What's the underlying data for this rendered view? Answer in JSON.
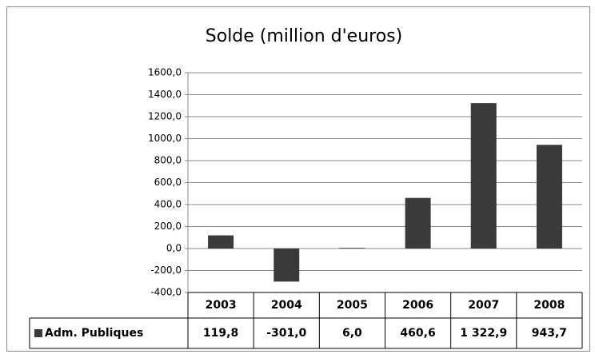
{
  "chart_data": {
    "type": "bar",
    "title": "Solde (million d'euros)",
    "categories": [
      "2003",
      "2004",
      "2005",
      "2006",
      "2007",
      "2008"
    ],
    "series": [
      {
        "name": "Adm. Publiques",
        "color": "#3a3a3a",
        "values": [
          119.8,
          -301.0,
          6.0,
          460.6,
          1322.9,
          943.7
        ],
        "value_labels": [
          "119,8",
          "-301,0",
          "6,0",
          "460,6",
          "1 322,9",
          "943,7"
        ]
      }
    ],
    "ylim": [
      -400,
      1600
    ],
    "yticks": [
      {
        "value": -400,
        "label": "-400,0"
      },
      {
        "value": -200,
        "label": "-200,0"
      },
      {
        "value": 0,
        "label": "0,0"
      },
      {
        "value": 200,
        "label": "200,0"
      },
      {
        "value": 400,
        "label": "400,0"
      },
      {
        "value": 600,
        "label": "600,0"
      },
      {
        "value": 800,
        "label": "800,0"
      },
      {
        "value": 1000,
        "label": "1000,0"
      },
      {
        "value": 1200,
        "label": "1200,0"
      },
      {
        "value": 1400,
        "label": "1400,0"
      },
      {
        "value": 1600,
        "label": "1600,0"
      }
    ],
    "grid": true
  }
}
